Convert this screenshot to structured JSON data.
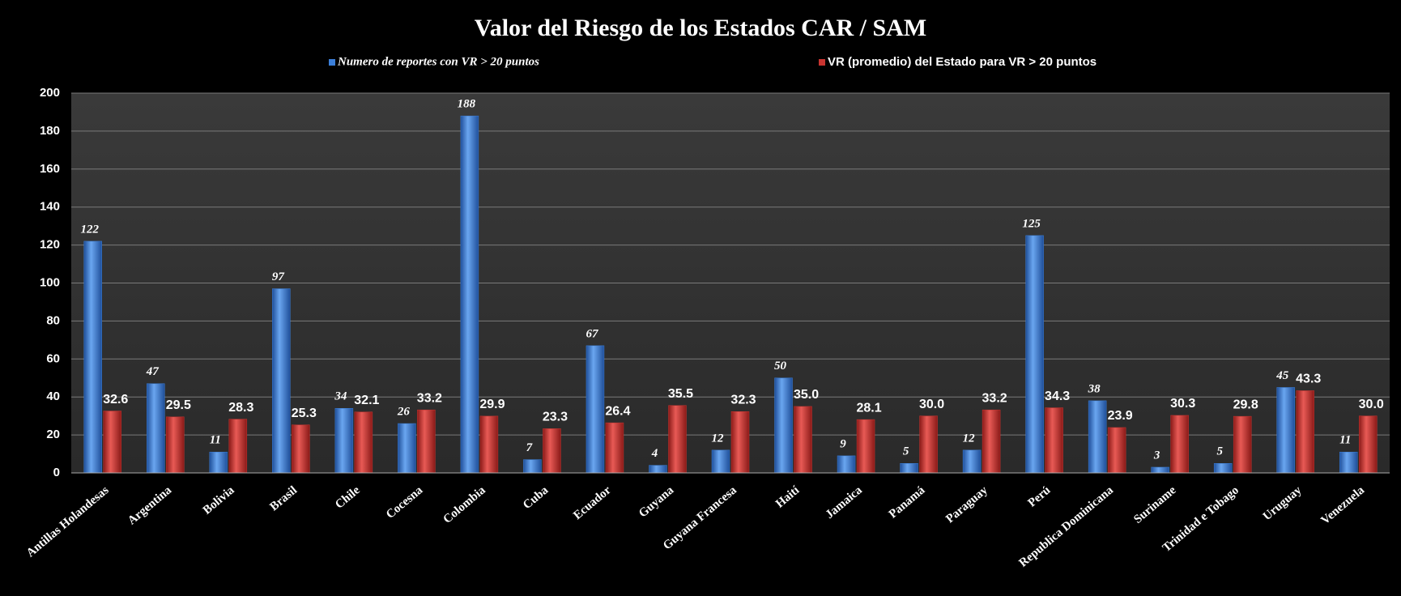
{
  "chart_data": {
    "type": "bar",
    "title": "Valor del Riesgo de los Estados CAR / SAM",
    "categories": [
      "Antillas Holandesas",
      "Argentina",
      "Bolivia",
      "Brasil",
      "Chile",
      "Cocesna",
      "Colombia",
      "Cuba",
      "Ecuador",
      "Guyana",
      "Guyana Francesa",
      "Haití",
      "Jamaica",
      "Panamá",
      "Paraguay",
      "Perú",
      "Republica Dominicana",
      "Suriname",
      "Trinidad e Tobago",
      "Uruguay",
      "Venezuela"
    ],
    "series": [
      {
        "name": "Numero de reportes con VR > 20 puntos",
        "color": "#3b7fd9",
        "values": [
          122,
          47,
          11,
          97,
          34,
          26,
          188,
          7,
          67,
          4,
          12,
          50,
          9,
          5,
          12,
          125,
          38,
          3,
          5,
          45,
          11
        ]
      },
      {
        "name": "VR (promedio) del Estado para VR > 20 puntos",
        "color": "#c93430",
        "values": [
          32.6,
          29.5,
          28.3,
          25.3,
          32.1,
          33.2,
          29.9,
          23.3,
          26.4,
          35.5,
          32.3,
          35.0,
          28.1,
          30.0,
          33.2,
          34.3,
          23.9,
          30.3,
          29.8,
          43.3,
          30.0
        ],
        "value_labels": [
          "32.6",
          "29.5",
          "28.3",
          "25.3",
          "32.1",
          "33.2",
          "29.9",
          "23.3",
          "26.4",
          "35.5",
          "32.3",
          "35.0",
          "28.1",
          "30.0",
          "33.2",
          "34.3",
          "23.9",
          "30.3",
          "29.8",
          "43.3",
          "30.0"
        ]
      }
    ],
    "ylim": [
      0,
      200
    ],
    "yticks": [
      0,
      20,
      40,
      60,
      80,
      100,
      120,
      140,
      160,
      180,
      200
    ],
    "grid": true
  }
}
